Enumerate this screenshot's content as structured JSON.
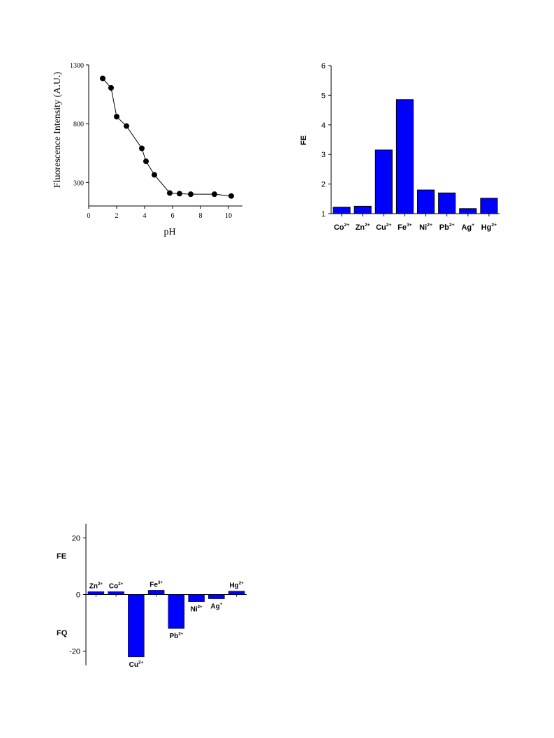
{
  "chart_data": [
    {
      "type": "line",
      "xlabel": "pH",
      "ylabel": "Fluorescence Intensity (A.U.)",
      "xlim": [
        0,
        11
      ],
      "ylim": [
        100,
        1300
      ],
      "x_ticks": [
        "0",
        "2",
        "4",
        "6",
        "8",
        "10"
      ],
      "y_ticks": [
        "300",
        "800",
        "1300"
      ],
      "series": [
        {
          "x": [
            1.0,
            1.6,
            2.0,
            2.7,
            3.8,
            4.1,
            4.7,
            5.8,
            6.5,
            7.3,
            9.0,
            10.2
          ],
          "y": [
            1185,
            1105,
            860,
            780,
            590,
            480,
            365,
            210,
            205,
            200,
            200,
            185
          ]
        }
      ],
      "markers": "filled-circle",
      "color": "#000000"
    },
    {
      "type": "bar",
      "ylabel": "FE",
      "ylim": [
        1,
        6
      ],
      "y_ticks": [
        "1",
        "2",
        "3",
        "4",
        "5",
        "6"
      ],
      "categories": [
        {
          "base": "Co",
          "sup": "2+"
        },
        {
          "base": "Zn",
          "sup": "2+"
        },
        {
          "base": "Cu",
          "sup": "2+"
        },
        {
          "base": "Fe",
          "sup": "3+"
        },
        {
          "base": "Ni",
          "sup": "2+"
        },
        {
          "base": "Pb",
          "sup": "2+"
        },
        {
          "base": "Ag",
          "sup": "+"
        },
        {
          "base": "Hg",
          "sup": "2+"
        }
      ],
      "values": [
        1.22,
        1.25,
        3.15,
        4.85,
        1.8,
        1.7,
        1.17,
        1.52
      ],
      "bar_color": "#0000ff"
    },
    {
      "type": "bar",
      "ylim": [
        -25,
        25
      ],
      "y_ticks": [
        "20",
        "0",
        "-20"
      ],
      "side_labels": {
        "top": "FE",
        "bottom": "FQ"
      },
      "categories": [
        {
          "base": "Zn",
          "sup": "2+"
        },
        {
          "base": "Co",
          "sup": "2+"
        },
        {
          "base": "Cu",
          "sup": "2+"
        },
        {
          "base": "Fe",
          "sup": "3+"
        },
        {
          "base": "Pb",
          "sup": "2+"
        },
        {
          "base": "Ni",
          "sup": "2+"
        },
        {
          "base": "Ag",
          "sup": "+"
        },
        {
          "base": "Hg",
          "sup": "2+"
        }
      ],
      "values": [
        1.0,
        1.0,
        -22.0,
        1.5,
        -12.0,
        -2.5,
        -1.5,
        1.2
      ],
      "bar_color": "#0000ff"
    }
  ]
}
